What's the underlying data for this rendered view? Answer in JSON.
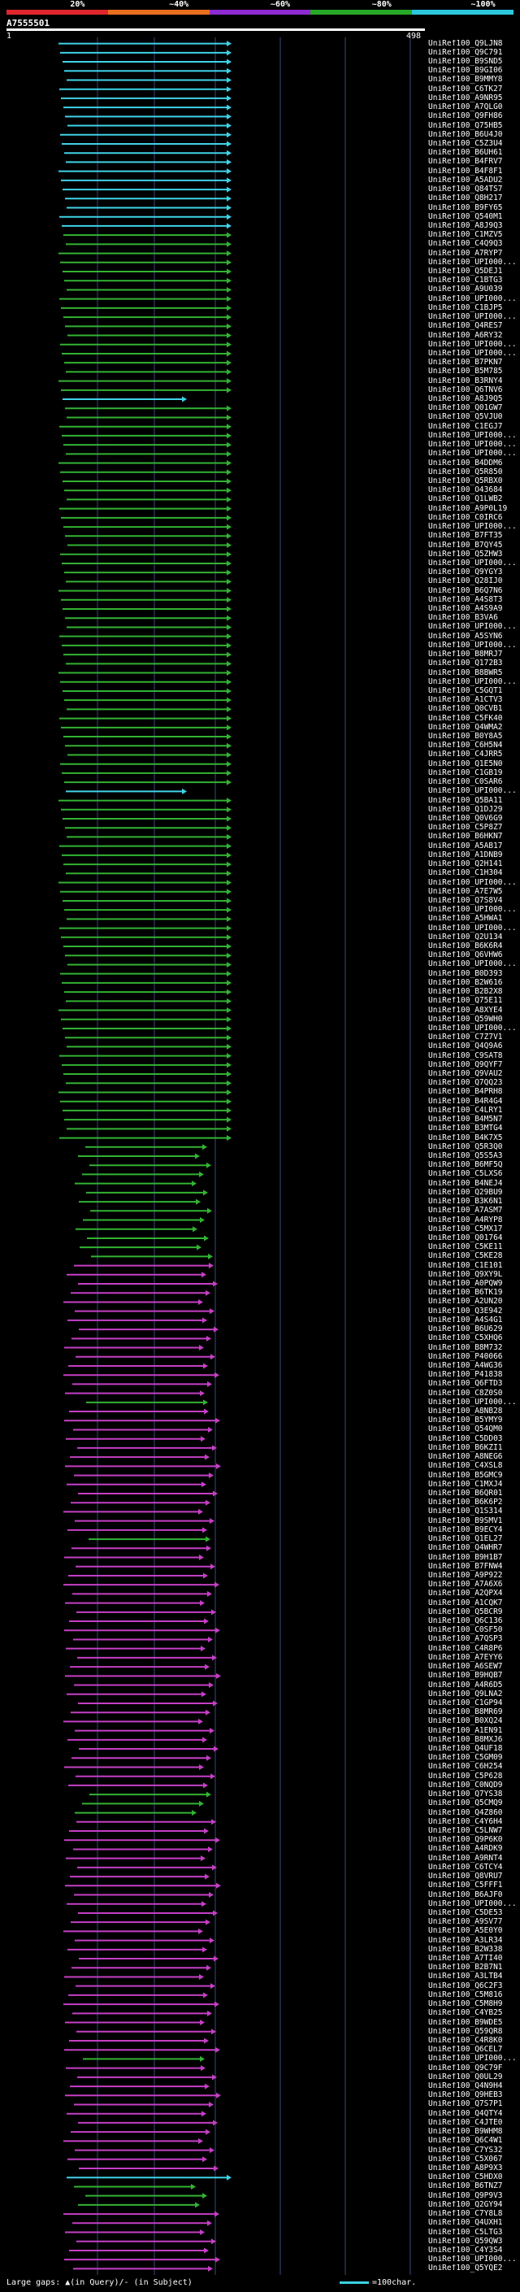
{
  "scale": {
    "ticks": [
      "20%",
      "~40%",
      "~60%",
      "~80%",
      "~100%"
    ],
    "colors": [
      "#e0262c",
      "#e86f1e",
      "#8e2bd0",
      "#27a827",
      "#2bc7da"
    ]
  },
  "query": {
    "name": "A7555501",
    "start": "1",
    "end": "498"
  },
  "colors": {
    "cyan": "#3fd3e8",
    "green": "#33b233",
    "magenta": "#c53fc5",
    "guide": "#3a4a7a"
  },
  "hits": [
    {
      "label": "UniRef100_Q9LJN8",
      "color": "cyan"
    },
    {
      "label": "UniRef100_Q9C791",
      "color": "cyan"
    },
    {
      "label": "UniRef100_B9SND5",
      "color": "cyan"
    },
    {
      "label": "UniRef100_B9GI06",
      "color": "cyan"
    },
    {
      "label": "UniRef100_B9MMY8",
      "color": "cyan"
    },
    {
      "label": "UniRef100_C6TK27",
      "color": "cyan"
    },
    {
      "label": "UniRef100_A9NR95",
      "color": "cyan"
    },
    {
      "label": "UniRef100_A7QLG0",
      "color": "cyan"
    },
    {
      "label": "UniRef100_Q9FH86",
      "color": "cyan"
    },
    {
      "label": "UniRef100_Q75HB5",
      "color": "cyan"
    },
    {
      "label": "UniRef100_B6U4J0",
      "color": "cyan"
    },
    {
      "label": "UniRef100_C5Z3U4",
      "color": "cyan"
    },
    {
      "label": "UniRef100_B6UH61",
      "color": "cyan"
    },
    {
      "label": "UniRef100_B4FRV7",
      "color": "cyan"
    },
    {
      "label": "UniRef100_B4F8F1",
      "color": "cyan"
    },
    {
      "label": "UniRef100_A5ADU2",
      "color": "cyan"
    },
    {
      "label": "UniRef100_Q84TS7",
      "color": "cyan"
    },
    {
      "label": "UniRef100_Q8H217",
      "color": "cyan"
    },
    {
      "label": "UniRef100_B9FY65",
      "color": "cyan"
    },
    {
      "label": "UniRef100_Q540M1",
      "color": "cyan"
    },
    {
      "label": "UniRef100_A8J9Q3",
      "color": "cyan"
    },
    {
      "label": "UniRef100_C1MZV5",
      "color": "green"
    },
    {
      "label": "UniRef100_C4Q9Q3",
      "color": "green"
    },
    {
      "label": "UniRef100_A7RYP7",
      "color": "green"
    },
    {
      "label": "UniRef100_UPI000...",
      "color": "green"
    },
    {
      "label": "UniRef100_Q5DEJ1",
      "color": "green"
    },
    {
      "label": "UniRef100_C1BTG3",
      "color": "green"
    },
    {
      "label": "UniRef100_A9U039",
      "color": "green"
    },
    {
      "label": "UniRef100_UPI000...",
      "color": "green"
    },
    {
      "label": "UniRef100_C1BJP5",
      "color": "green"
    },
    {
      "label": "UniRef100_UPI000...",
      "color": "green"
    },
    {
      "label": "UniRef100_Q4RES7",
      "color": "green"
    },
    {
      "label": "UniRef100_A6RY32",
      "color": "green"
    },
    {
      "label": "UniRef100_UPI000...",
      "color": "green"
    },
    {
      "label": "UniRef100_UPI000...",
      "color": "green"
    },
    {
      "label": "UniRef100_B7PKN7",
      "color": "green"
    },
    {
      "label": "UniRef100_B5M785",
      "color": "green"
    },
    {
      "label": "UniRef100_B3RNY4",
      "color": "green"
    },
    {
      "label": "UniRef100_Q6TNV6",
      "color": "green"
    },
    {
      "label": "UniRef100_A8J9Q5",
      "color": "cyan"
    },
    {
      "label": "UniRef100_Q01GW7",
      "color": "green"
    },
    {
      "label": "UniRef100_Q5VJU0",
      "color": "green"
    },
    {
      "label": "UniRef100_C1EGJ7",
      "color": "green"
    },
    {
      "label": "UniRef100_UPI000...",
      "color": "green"
    },
    {
      "label": "UniRef100_UPI000...",
      "color": "green"
    },
    {
      "label": "UniRef100_UPI000...",
      "color": "green"
    },
    {
      "label": "UniRef100_B4DDM6",
      "color": "green"
    },
    {
      "label": "UniRef100_Q5R850",
      "color": "green"
    },
    {
      "label": "UniRef100_Q5RBX0",
      "color": "green"
    },
    {
      "label": "UniRef100_O43684",
      "color": "green"
    },
    {
      "label": "UniRef100_Q1LWB2",
      "color": "green"
    },
    {
      "label": "UniRef100_A9P0L19",
      "color": "green"
    },
    {
      "label": "UniRef100_C0IRC6",
      "color": "green"
    },
    {
      "label": "UniRef100_UPI000...",
      "color": "green"
    },
    {
      "label": "UniRef100_B7FT35",
      "color": "green"
    },
    {
      "label": "UniRef100_B7QY45",
      "color": "green"
    },
    {
      "label": "UniRef100_Q5ZHW3",
      "color": "green"
    },
    {
      "label": "UniRef100_UPI000...",
      "color": "green"
    },
    {
      "label": "UniRef100_Q9YGY3",
      "color": "green"
    },
    {
      "label": "UniRef100_Q28IJ0",
      "color": "green"
    },
    {
      "label": "UniRef100_B6Q7N6",
      "color": "green"
    },
    {
      "label": "UniRef100_A4S8T3",
      "color": "green"
    },
    {
      "label": "UniRef100_A4S9A9",
      "color": "green"
    },
    {
      "label": "UniRef100_B3VA6",
      "color": "green"
    },
    {
      "label": "UniRef100_UPI000...",
      "color": "green"
    },
    {
      "label": "UniRef100_A5SYN6",
      "color": "green"
    },
    {
      "label": "UniRef100_UPI000...",
      "color": "green"
    },
    {
      "label": "UniRef100_B8MRJ7",
      "color": "green"
    },
    {
      "label": "UniRef100_Q172B3",
      "color": "green"
    },
    {
      "label": "UniRef100_B8BWR5",
      "color": "green"
    },
    {
      "label": "UniRef100_UPI000...",
      "color": "green"
    },
    {
      "label": "UniRef100_C5GQT1",
      "color": "green"
    },
    {
      "label": "UniRef100_A1CTV3",
      "color": "green"
    },
    {
      "label": "UniRef100_Q0CVB1",
      "color": "green"
    },
    {
      "label": "UniRef100_C5FK40",
      "color": "green"
    },
    {
      "label": "UniRef100_Q4WMA2",
      "color": "green"
    },
    {
      "label": "UniRef100_B0Y8A5",
      "color": "green"
    },
    {
      "label": "UniRef100_C6H5N4",
      "color": "green"
    },
    {
      "label": "UniRef100_C4JRR5",
      "color": "green"
    },
    {
      "label": "UniRef100_Q1E5N0",
      "color": "green"
    },
    {
      "label": "UniRef100_C1GB19",
      "color": "green"
    },
    {
      "label": "UniRef100_C0SAR6",
      "color": "green"
    },
    {
      "label": "UniRef100_UPI000...",
      "color": "cyan"
    },
    {
      "label": "UniRef100_Q5BA11",
      "color": "green"
    },
    {
      "label": "UniRef100_Q1DJ29",
      "color": "green"
    },
    {
      "label": "UniRef100_Q0V6G9",
      "color": "green"
    },
    {
      "label": "UniRef100_C5P8Z7",
      "color": "green"
    },
    {
      "label": "UniRef100_B6HKN7",
      "color": "green"
    },
    {
      "label": "UniRef100_A5AB17",
      "color": "green"
    },
    {
      "label": "UniRef100_A1DNB9",
      "color": "green"
    },
    {
      "label": "UniRef100_Q2H141",
      "color": "green"
    },
    {
      "label": "UniRef100_C1H304",
      "color": "green"
    },
    {
      "label": "UniRef100_UPI000...",
      "color": "green"
    },
    {
      "label": "UniRef100_A7E7W5",
      "color": "green"
    },
    {
      "label": "UniRef100_Q7S8V4",
      "color": "green"
    },
    {
      "label": "UniRef100_UPI000...",
      "color": "green"
    },
    {
      "label": "UniRef100_A5HWA1",
      "color": "green"
    },
    {
      "label": "UniRef100_UPI000...",
      "color": "green"
    },
    {
      "label": "UniRef100_Q2U134",
      "color": "green"
    },
    {
      "label": "UniRef100_B6K6R4",
      "color": "green"
    },
    {
      "label": "UniRef100_Q6VHW6",
      "color": "green"
    },
    {
      "label": "UniRef100_UPI000...",
      "color": "green"
    },
    {
      "label": "UniRef100_B0D393",
      "color": "green"
    },
    {
      "label": "UniRef100_B2W616",
      "color": "green"
    },
    {
      "label": "UniRef100_B2B2X8",
      "color": "green"
    },
    {
      "label": "UniRef100_Q75E11",
      "color": "green"
    },
    {
      "label": "UniRef100_A8XYE4",
      "color": "green"
    },
    {
      "label": "UniRef100_Q59WH0",
      "color": "green"
    },
    {
      "label": "UniRef100_UPI000...",
      "color": "green"
    },
    {
      "label": "UniRef100_C7Z7V1",
      "color": "green"
    },
    {
      "label": "UniRef100_Q4Q9A6",
      "color": "green"
    },
    {
      "label": "UniRef100_C9SAT8",
      "color": "green"
    },
    {
      "label": "UniRef100_Q9QYF7",
      "color": "green"
    },
    {
      "label": "UniRef100_Q9VAU2",
      "color": "green"
    },
    {
      "label": "UniRef100_Q7QQ23",
      "color": "green"
    },
    {
      "label": "UniRef100_B4PRH8",
      "color": "green"
    },
    {
      "label": "UniRef100_B4R4G4",
      "color": "green"
    },
    {
      "label": "UniRef100_C4LRY1",
      "color": "green"
    },
    {
      "label": "UniRef100_B4M5N7",
      "color": "green"
    },
    {
      "label": "UniRef100_B3MTG4",
      "color": "green"
    },
    {
      "label": "UniRef100_B4K7X5",
      "color": "green"
    },
    {
      "label": "UniRef100_Q5R3Q0",
      "color": "green"
    },
    {
      "label": "UniRef100_Q5S5A3",
      "color": "green"
    },
    {
      "label": "UniRef100_B6MF5Q",
      "color": "green"
    },
    {
      "label": "UniRef100_C5LXS6",
      "color": "green"
    },
    {
      "label": "UniRef100_B4NEJ4",
      "color": "green"
    },
    {
      "label": "UniRef100_Q29BU9",
      "color": "green"
    },
    {
      "label": "UniRef100_B3K6N1",
      "color": "green"
    },
    {
      "label": "UniRef100_A7ASM7",
      "color": "green"
    },
    {
      "label": "UniRef100_A4RYP8",
      "color": "green"
    },
    {
      "label": "UniRef100_C5MX17",
      "color": "green"
    },
    {
      "label": "UniRef100_Q01764",
      "color": "green"
    },
    {
      "label": "UniRef100_C5KE11",
      "color": "green"
    },
    {
      "label": "UniRef100_C5KE28",
      "color": "green"
    },
    {
      "label": "UniRef100_C1E101",
      "color": "magenta"
    },
    {
      "label": "UniRef100_Q9XY9L",
      "color": "magenta"
    },
    {
      "label": "UniRef100_A0PQW9",
      "color": "magenta"
    },
    {
      "label": "UniRef100_B6TK19",
      "color": "magenta"
    },
    {
      "label": "UniRef100_A2UN20",
      "color": "magenta"
    },
    {
      "label": "UniRef100_Q3E942",
      "color": "magenta"
    },
    {
      "label": "UniRef100_A4S4G1",
      "color": "magenta"
    },
    {
      "label": "UniRef100_B6U629",
      "color": "magenta"
    },
    {
      "label": "UniRef100_C5XHQ6",
      "color": "magenta"
    },
    {
      "label": "UniRef100_B8M732",
      "color": "magenta"
    },
    {
      "label": "UniRef100_P40066",
      "color": "magenta"
    },
    {
      "label": "UniRef100_A4WG36",
      "color": "magenta"
    },
    {
      "label": "UniRef100_P41838",
      "color": "magenta"
    },
    {
      "label": "UniRef100_Q6FTD3",
      "color": "magenta"
    },
    {
      "label": "UniRef100_C8Z0S0",
      "color": "magenta"
    },
    {
      "label": "UniRef100_UPI000...",
      "color": "green"
    },
    {
      "label": "UniRef100_A8NB28",
      "color": "magenta"
    },
    {
      "label": "UniRef100_B5YMY9",
      "color": "magenta"
    },
    {
      "label": "UniRef100_Q54QM0",
      "color": "magenta"
    },
    {
      "label": "UniRef100_C5DD03",
      "color": "magenta"
    },
    {
      "label": "UniRef100_B6KZI1",
      "color": "magenta"
    },
    {
      "label": "UniRef100_A8NEG6",
      "color": "magenta"
    },
    {
      "label": "UniRef100_C4XSL8",
      "color": "magenta"
    },
    {
      "label": "UniRef100_B5GMC9",
      "color": "magenta"
    },
    {
      "label": "UniRef100_C1MXJ4",
      "color": "magenta"
    },
    {
      "label": "UniRef100_B6QR01",
      "color": "magenta"
    },
    {
      "label": "UniRef100_B6K6P2",
      "color": "magenta"
    },
    {
      "label": "UniRef100_Q1S314",
      "color": "magenta"
    },
    {
      "label": "UniRef100_B9SMV1",
      "color": "magenta"
    },
    {
      "label": "UniRef100_B9ECY4",
      "color": "magenta"
    },
    {
      "label": "UniRef100_Q1EL27",
      "color": "green"
    },
    {
      "label": "UniRef100_Q4WHR7",
      "color": "magenta"
    },
    {
      "label": "UniRef100_B9H1B7",
      "color": "magenta"
    },
    {
      "label": "UniRef100_B7FNW4",
      "color": "magenta"
    },
    {
      "label": "UniRef100_A9P922",
      "color": "magenta"
    },
    {
      "label": "UniRef100_A7A6X6",
      "color": "magenta"
    },
    {
      "label": "UniRef100_A2QPX4",
      "color": "magenta"
    },
    {
      "label": "UniRef100_A1CQK7",
      "color": "magenta"
    },
    {
      "label": "UniRef100_Q5BCR9",
      "color": "magenta"
    },
    {
      "label": "UniRef100_Q6C136",
      "color": "magenta"
    },
    {
      "label": "UniRef100_C0SF50",
      "color": "magenta"
    },
    {
      "label": "UniRef100_A7QSP3",
      "color": "magenta"
    },
    {
      "label": "UniRef100_C4R8P6",
      "color": "magenta"
    },
    {
      "label": "UniRef100_A7EYY6",
      "color": "magenta"
    },
    {
      "label": "UniRef100_A6SEW7",
      "color": "magenta"
    },
    {
      "label": "UniRef100_B9HQB7",
      "color": "magenta"
    },
    {
      "label": "UniRef100_A4R6D5",
      "color": "magenta"
    },
    {
      "label": "UniRef100_Q9LNA2",
      "color": "magenta"
    },
    {
      "label": "UniRef100_C1GP94",
      "color": "magenta"
    },
    {
      "label": "UniRef100_B8MR69",
      "color": "magenta"
    },
    {
      "label": "UniRef100_B0XQ24",
      "color": "magenta"
    },
    {
      "label": "UniRef100_A1EN91",
      "color": "magenta"
    },
    {
      "label": "UniRef100_B8MXJ6",
      "color": "magenta"
    },
    {
      "label": "UniRef100_Q4UF18",
      "color": "magenta"
    },
    {
      "label": "UniRef100_C5GM09",
      "color": "magenta"
    },
    {
      "label": "UniRef100_C6H254",
      "color": "magenta"
    },
    {
      "label": "UniRef100_C5P628",
      "color": "magenta"
    },
    {
      "label": "UniRef100_C0NQD9",
      "color": "magenta"
    },
    {
      "label": "UniRef100_Q7YS38",
      "color": "green"
    },
    {
      "label": "UniRef100_Q5CMQ9",
      "color": "green"
    },
    {
      "label": "UniRef100_Q4Z860",
      "color": "green"
    },
    {
      "label": "UniRef100_C4Y6H4",
      "color": "magenta"
    },
    {
      "label": "UniRef100_C5LNW7",
      "color": "magenta"
    },
    {
      "label": "UniRef100_Q9P6K0",
      "color": "magenta"
    },
    {
      "label": "UniRef100_A4RDK9",
      "color": "magenta"
    },
    {
      "label": "UniRef100_A9RNT4",
      "color": "magenta"
    },
    {
      "label": "UniRef100_C6TCY4",
      "color": "magenta"
    },
    {
      "label": "UniRef100_Q8VRU7",
      "color": "magenta"
    },
    {
      "label": "UniRef100_C5FFF1",
      "color": "magenta"
    },
    {
      "label": "UniRef100_B6AJF0",
      "color": "magenta"
    },
    {
      "label": "UniRef100_UPI000...",
      "color": "magenta"
    },
    {
      "label": "UniRef100_C5DE53",
      "color": "magenta"
    },
    {
      "label": "UniRef100_A9SV77",
      "color": "magenta"
    },
    {
      "label": "UniRef100_A5E0Y0",
      "color": "magenta"
    },
    {
      "label": "UniRef100_A3LR34",
      "color": "magenta"
    },
    {
      "label": "UniRef100_B2W338",
      "color": "magenta"
    },
    {
      "label": "UniRef100_A7TI40",
      "color": "magenta"
    },
    {
      "label": "UniRef100_B2B7N1",
      "color": "magenta"
    },
    {
      "label": "UniRef100_A3LTB4",
      "color": "magenta"
    },
    {
      "label": "UniRef100_Q6C2F3",
      "color": "magenta"
    },
    {
      "label": "UniRef100_C5M816",
      "color": "magenta"
    },
    {
      "label": "UniRef100_C5M8H9",
      "color": "magenta"
    },
    {
      "label": "UniRef100_C4YB25",
      "color": "magenta"
    },
    {
      "label": "UniRef100_B9WDE5",
      "color": "magenta"
    },
    {
      "label": "UniRef100_Q59QR8",
      "color": "magenta"
    },
    {
      "label": "UniRef100_C4R8K0",
      "color": "magenta"
    },
    {
      "label": "UniRef100_Q6CEL7",
      "color": "magenta"
    },
    {
      "label": "UniRef100_UPI000...",
      "color": "green"
    },
    {
      "label": "UniRef100_Q9C79F",
      "color": "magenta"
    },
    {
      "label": "UniRef100_Q0UL29",
      "color": "magenta"
    },
    {
      "label": "UniRef100_Q4N9H4",
      "color": "magenta"
    },
    {
      "label": "UniRef100_Q9HEB3",
      "color": "magenta"
    },
    {
      "label": "UniRef100_Q7S7P1",
      "color": "magenta"
    },
    {
      "label": "UniRef100_Q4QTY4",
      "color": "magenta"
    },
    {
      "label": "UniRef100_C4JTE0",
      "color": "magenta"
    },
    {
      "label": "UniRef100_B9WHM8",
      "color": "magenta"
    },
    {
      "label": "UniRef100_Q6C4W1",
      "color": "magenta"
    },
    {
      "label": "UniRef100_C7YS32",
      "color": "magenta"
    },
    {
      "label": "UniRef100_C5X067",
      "color": "magenta"
    },
    {
      "label": "UniRef100_A8P9X3",
      "color": "magenta"
    },
    {
      "label": "UniRef100_C5HDX0",
      "color": "cyan"
    },
    {
      "label": "UniRef100_B6TNZ7",
      "color": "green"
    },
    {
      "label": "UniRef100_Q9P9V3",
      "color": "green"
    },
    {
      "label": "UniRef100_Q2GY94",
      "color": "green"
    },
    {
      "label": "UniRef100_C7Y8L8",
      "color": "magenta"
    },
    {
      "label": "UniRef100_Q4UXH1",
      "color": "magenta"
    },
    {
      "label": "UniRef100_C5LTG3",
      "color": "magenta"
    },
    {
      "label": "UniRef100_Q59QW3",
      "color": "magenta"
    },
    {
      "label": "UniRef100_C4Y3S4",
      "color": "magenta"
    },
    {
      "label": "UniRef100_UPI000...",
      "color": "magenta"
    },
    {
      "label": "UniRef100_Q5YQE2",
      "color": "magenta"
    }
  ],
  "footer": {
    "left": "Large gaps: ▲(in Query)/- (in Subject)",
    "right": "=100char."
  }
}
